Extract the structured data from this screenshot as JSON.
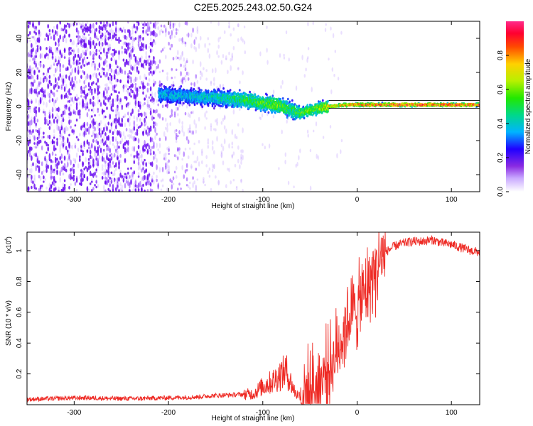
{
  "figure": {
    "title": "C2E5.2025.243.02.50.G24"
  },
  "chart_data": [
    {
      "type": "heatmap",
      "title": "",
      "xlabel": "Height of straight line (km)",
      "ylabel": "Frequency (Hz)",
      "xlim": [
        -350,
        130
      ],
      "ylim": [
        -50,
        50
      ],
      "x_ticks": [
        -300,
        -200,
        -100,
        0,
        100
      ],
      "y_ticks": [
        -40,
        -20,
        0,
        20,
        40
      ],
      "colorbar": {
        "label": "Normalized spectral amplitude",
        "range": [
          0.0,
          1.0
        ],
        "ticks": [
          0.0,
          0.2,
          0.4,
          0.6,
          0.8
        ],
        "colors": [
          "#ffffff",
          "#9a4dff",
          "#5a00ff",
          "#0020ff",
          "#00c8ff",
          "#00e070",
          "#33ff00",
          "#ccff00",
          "#ffd000",
          "#ff5000",
          "#ff0030",
          "#ff2890"
        ]
      },
      "ridge": {
        "description_points_x": [
          -205,
          -180,
          -150,
          -120,
          -100,
          -85,
          -70,
          -60,
          -50,
          -40,
          -30,
          -10,
          10,
          60,
          130
        ],
        "description_points_y": [
          7,
          6,
          5,
          4,
          2,
          1,
          -2,
          -4,
          -2,
          -1,
          0,
          1,
          1,
          1,
          1
        ],
        "peak_amplitude": [
          0.3,
          0.3,
          0.35,
          0.45,
          0.5,
          0.55,
          0.45,
          0.5,
          0.55,
          0.6,
          0.7,
          0.8,
          0.85,
          0.9,
          0.9
        ]
      }
    },
    {
      "type": "line",
      "title": "",
      "xlabel": "Height of straight line (km)",
      "ylabel": "SNR (10 * v/v)",
      "scale_note": "(x10^4)",
      "scale_base": "(x10",
      "scale_exp": "4",
      "xlim": [
        -350,
        130
      ],
      "ylim": [
        0.0,
        1.12
      ],
      "x_ticks": [
        -300,
        -200,
        -100,
        0,
        100
      ],
      "y_ticks": [
        0.2,
        0.4,
        0.6,
        0.8,
        1.0
      ],
      "series": [
        {
          "name": "SNR",
          "color": "#ee2a24",
          "x": [
            -350,
            -320,
            -290,
            -260,
            -230,
            -200,
            -170,
            -150,
            -130,
            -110,
            -100,
            -90,
            -80,
            -75,
            -70,
            -65,
            -60,
            -50,
            -40,
            -35,
            -30,
            -25,
            -20,
            -15,
            -10,
            -5,
            0,
            5,
            10,
            15,
            20,
            25,
            30,
            40,
            50,
            60,
            70,
            80,
            90,
            100,
            110,
            120,
            130
          ],
          "y": [
            0.035,
            0.04,
            0.045,
            0.04,
            0.04,
            0.045,
            0.05,
            0.06,
            0.065,
            0.07,
            0.12,
            0.15,
            0.2,
            0.22,
            0.14,
            0.07,
            0.06,
            0.09,
            0.15,
            0.2,
            0.25,
            0.28,
            0.38,
            0.45,
            0.55,
            0.6,
            0.62,
            0.68,
            0.75,
            0.82,
            0.88,
            0.94,
            0.99,
            1.03,
            1.05,
            1.06,
            1.06,
            1.07,
            1.05,
            1.04,
            1.02,
            1.0,
            0.99
          ]
        }
      ]
    }
  ]
}
